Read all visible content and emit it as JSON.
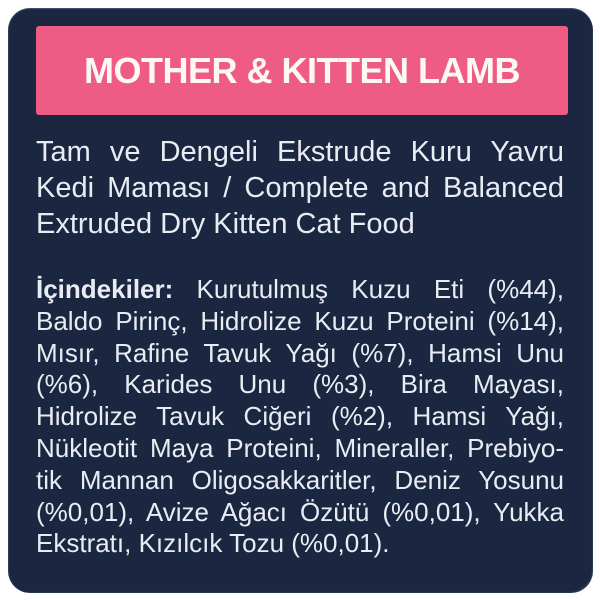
{
  "colors": {
    "page_bg": "#ffffff",
    "card_bg": "#1b2740",
    "banner_bg": "#ee5b84",
    "banner_text": "#fdf7f6",
    "body_text": "#e8ecf3"
  },
  "banner": {
    "title": "MOTHER & KITTEN LAMB"
  },
  "description": {
    "lines": [
      "Tam ve Dengeli Ekstrude Kuru Yavru",
      "Kedi Maması / Complete and Balanced",
      "Extruded Dry Kitten Cat Food"
    ]
  },
  "ingredients": {
    "label": "İçindekiler:",
    "lines": [
      "Kurutulmuş Kuzu Eti (%44),",
      "Baldo Pirinç, Hidrolize Kuzu Proteini (%14),",
      "Mısır, Rafine Tavuk Yağı (%7), Hamsi Unu",
      "(%6), Karides Unu (%3), Bira Mayası,",
      "Hidrolize Tavuk Ciğeri (%2), Hamsi Yağı,",
      "Nükleotit Maya Proteini, Mineraller, Prebiyo-",
      "tik Mannan Oligosakkaritler, Deniz Yosunu",
      "(%0,01), Avize Ağacı Özütü (%0,01), Yukka",
      "Ekstratı, Kızılcık Tozu (%0,01)."
    ]
  }
}
